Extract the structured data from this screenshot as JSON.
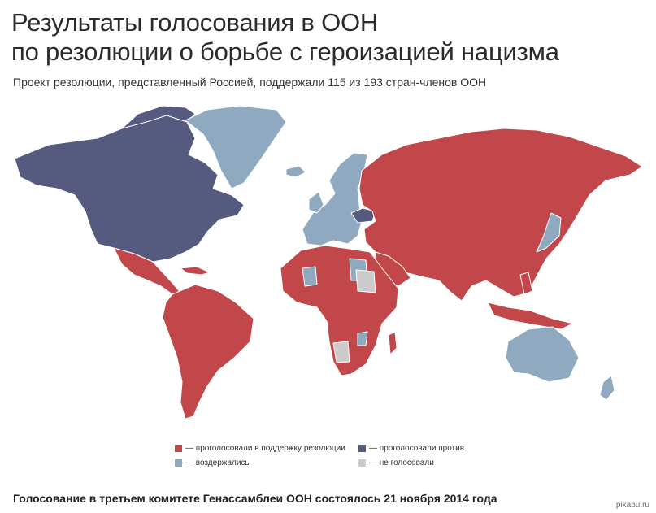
{
  "title": {
    "line1": "Результаты голосования в ООН",
    "line2": "по резолюции о борьбе с героизацией нацизма"
  },
  "subtitle": "Проект резолюции, представленный Россией, поддержали 115 из 193 стран-членов ООН",
  "map": {
    "colors": {
      "support": "#c2474a",
      "against": "#565a7e",
      "abstain": "#8fa9c1",
      "no_vote": "#cbcbcb",
      "border": "#ffffff"
    },
    "regions": {
      "support": [
        "Russia",
        "China",
        "India",
        "Central Asia",
        "Middle East",
        "Southeast Asia",
        "Latin America",
        "Africa (most)"
      ],
      "against": [
        "USA",
        "Canada",
        "Ukraine"
      ],
      "abstain": [
        "Greenland",
        "Europe",
        "Australia",
        "Japan",
        "some African countries"
      ],
      "no_vote": [
        "some African countries"
      ]
    }
  },
  "legend": {
    "support": "— проголосовали в поддержку резолюции",
    "against": "— проголосовали против",
    "abstain": "— воздержались",
    "no_vote": "— не голосовали"
  },
  "footer": "Голосование в третьем комитете Генассамблеи ООН состоялось 21 ноября 2014 года",
  "watermark": "pikabu.ru"
}
